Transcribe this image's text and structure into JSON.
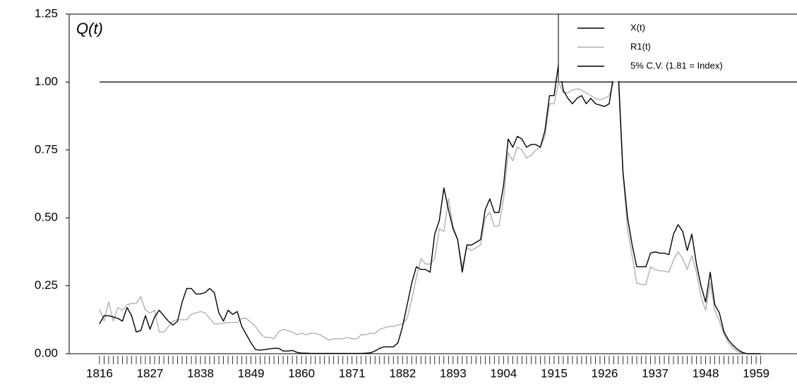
{
  "chart_data": {
    "type": "line",
    "ylabel": "Q(t)",
    "x": [
      1816,
      1817,
      1818,
      1819,
      1820,
      1821,
      1822,
      1823,
      1824,
      1825,
      1826,
      1827,
      1828,
      1829,
      1830,
      1831,
      1832,
      1833,
      1834,
      1835,
      1836,
      1837,
      1838,
      1839,
      1840,
      1841,
      1842,
      1843,
      1844,
      1845,
      1846,
      1847,
      1848,
      1849,
      1850,
      1851,
      1852,
      1853,
      1854,
      1855,
      1856,
      1857,
      1858,
      1859,
      1860,
      1861,
      1862,
      1863,
      1864,
      1865,
      1866,
      1867,
      1868,
      1869,
      1870,
      1871,
      1872,
      1873,
      1874,
      1875,
      1876,
      1877,
      1878,
      1879,
      1880,
      1881,
      1882,
      1883,
      1884,
      1885,
      1886,
      1887,
      1888,
      1889,
      1890,
      1891,
      1892,
      1893,
      1894,
      1895,
      1896,
      1897,
      1898,
      1899,
      1900,
      1901,
      1902,
      1903,
      1904,
      1905,
      1906,
      1907,
      1908,
      1909,
      1910,
      1911,
      1912,
      1913,
      1914,
      1915,
      1916,
      1917,
      1918,
      1919,
      1920,
      1921,
      1922,
      1923,
      1924,
      1925,
      1926,
      1927,
      1928,
      1929,
      1930,
      1931,
      1932,
      1933,
      1934,
      1935,
      1936,
      1937,
      1938,
      1939,
      1940,
      1941,
      1942,
      1943,
      1944,
      1945,
      1946,
      1947,
      1948,
      1949,
      1950,
      1951,
      1952,
      1953,
      1954,
      1955,
      1956,
      1957,
      1958,
      1959,
      1960
    ],
    "series": [
      {
        "name": "X(t)",
        "color": "#000000",
        "values": [
          0.11,
          0.14,
          0.14,
          0.135,
          0.13,
          0.12,
          0.17,
          0.14,
          0.08,
          0.085,
          0.14,
          0.09,
          0.135,
          0.16,
          0.14,
          0.12,
          0.105,
          0.12,
          0.19,
          0.24,
          0.24,
          0.22,
          0.22,
          0.225,
          0.24,
          0.225,
          0.15,
          0.12,
          0.16,
          0.145,
          0.155,
          0.1,
          0.07,
          0.04,
          0.015,
          0.013,
          0.015,
          0.018,
          0.02,
          0.02,
          0.01,
          0.01,
          0.012,
          0.005,
          0.002,
          0.002,
          0.001,
          0.001,
          0.001,
          0.001,
          0.001,
          0.001,
          0.001,
          0.001,
          0.001,
          0.001,
          0.001,
          0.001,
          0.002,
          0.003,
          0.01,
          0.02,
          0.025,
          0.025,
          0.025,
          0.04,
          0.1,
          0.18,
          0.26,
          0.32,
          0.31,
          0.31,
          0.3,
          0.44,
          0.49,
          0.61,
          0.53,
          0.46,
          0.42,
          0.3,
          0.4,
          0.4,
          0.41,
          0.42,
          0.53,
          0.57,
          0.52,
          0.52,
          0.62,
          0.79,
          0.76,
          0.8,
          0.79,
          0.76,
          0.77,
          0.77,
          0.76,
          0.82,
          0.95,
          0.95,
          1.07,
          0.97,
          0.94,
          0.92,
          0.94,
          0.95,
          0.92,
          0.94,
          0.92,
          0.915,
          0.91,
          0.92,
          1.03,
          1.03,
          0.67,
          0.5,
          0.4,
          0.32,
          0.32,
          0.32,
          0.37,
          0.375,
          0.37,
          0.37,
          0.365,
          0.44,
          0.475,
          0.45,
          0.38,
          0.44,
          0.33,
          0.25,
          0.19,
          0.3,
          0.18,
          0.15,
          0.08,
          0.05,
          0.03,
          0.015,
          0.005,
          0,
          0,
          0,
          0
        ]
      },
      {
        "name": "R1(t)",
        "color": "#b0b0b0",
        "values": [
          0.165,
          0.12,
          0.19,
          0.12,
          0.17,
          0.16,
          0.18,
          0.185,
          0.185,
          0.21,
          0.16,
          0.15,
          0.16,
          0.08,
          0.08,
          0.1,
          0.12,
          0.125,
          0.125,
          0.125,
          0.145,
          0.15,
          0.155,
          0.15,
          0.13,
          0.11,
          0.11,
          0.112,
          0.115,
          0.115,
          0.115,
          0.13,
          0.13,
          0.115,
          0.1,
          0.075,
          0.06,
          0.06,
          0.055,
          0.08,
          0.09,
          0.085,
          0.08,
          0.07,
          0.075,
          0.07,
          0.075,
          0.075,
          0.07,
          0.06,
          0.05,
          0.055,
          0.055,
          0.055,
          0.06,
          0.055,
          0.055,
          0.07,
          0.07,
          0.075,
          0.075,
          0.09,
          0.095,
          0.1,
          0.1,
          0.105,
          0.11,
          0.13,
          0.2,
          0.28,
          0.35,
          0.33,
          0.33,
          0.35,
          0.46,
          0.45,
          0.57,
          0.47,
          0.42,
          0.32,
          0.39,
          0.38,
          0.39,
          0.4,
          0.5,
          0.52,
          0.47,
          0.47,
          0.57,
          0.74,
          0.71,
          0.76,
          0.75,
          0.72,
          0.73,
          0.75,
          0.76,
          0.8,
          0.92,
          0.92,
          1.0,
          0.96,
          0.96,
          0.97,
          0.975,
          0.97,
          0.96,
          0.95,
          0.94,
          0.935,
          0.94,
          0.95,
          1.0,
          1.0,
          0.66,
          0.46,
          0.36,
          0.26,
          0.255,
          0.255,
          0.32,
          0.31,
          0.305,
          0.305,
          0.3,
          0.345,
          0.375,
          0.35,
          0.31,
          0.36,
          0.3,
          0.21,
          0.16,
          0.26,
          0.16,
          0.12,
          0.07,
          0.04,
          0.02,
          0.008,
          0.003,
          0,
          0,
          0,
          0
        ]
      }
    ],
    "reference_line": {
      "name": "5% C.V. (1.81 = Index)",
      "value": 1,
      "color": "#000000"
    },
    "xlim": [
      1809.4,
      1967.9
    ],
    "xticks": [
      1816,
      1827,
      1838,
      1849,
      1860,
      1871,
      1882,
      1893,
      1904,
      1915,
      1926,
      1937,
      1948,
      1959
    ],
    "ylim": [
      0,
      1.25
    ],
    "yticks": [
      {
        "value": 0,
        "label": "0.00"
      },
      {
        "value": 0.25,
        "label": "0.25"
      },
      {
        "value": 0.5,
        "label": "0.50"
      },
      {
        "value": 0.75,
        "label": "0.75"
      },
      {
        "value": 1,
        "label": "1.00"
      },
      {
        "value": 1.25,
        "label": "1.25"
      }
    ],
    "legend": "upper right"
  }
}
